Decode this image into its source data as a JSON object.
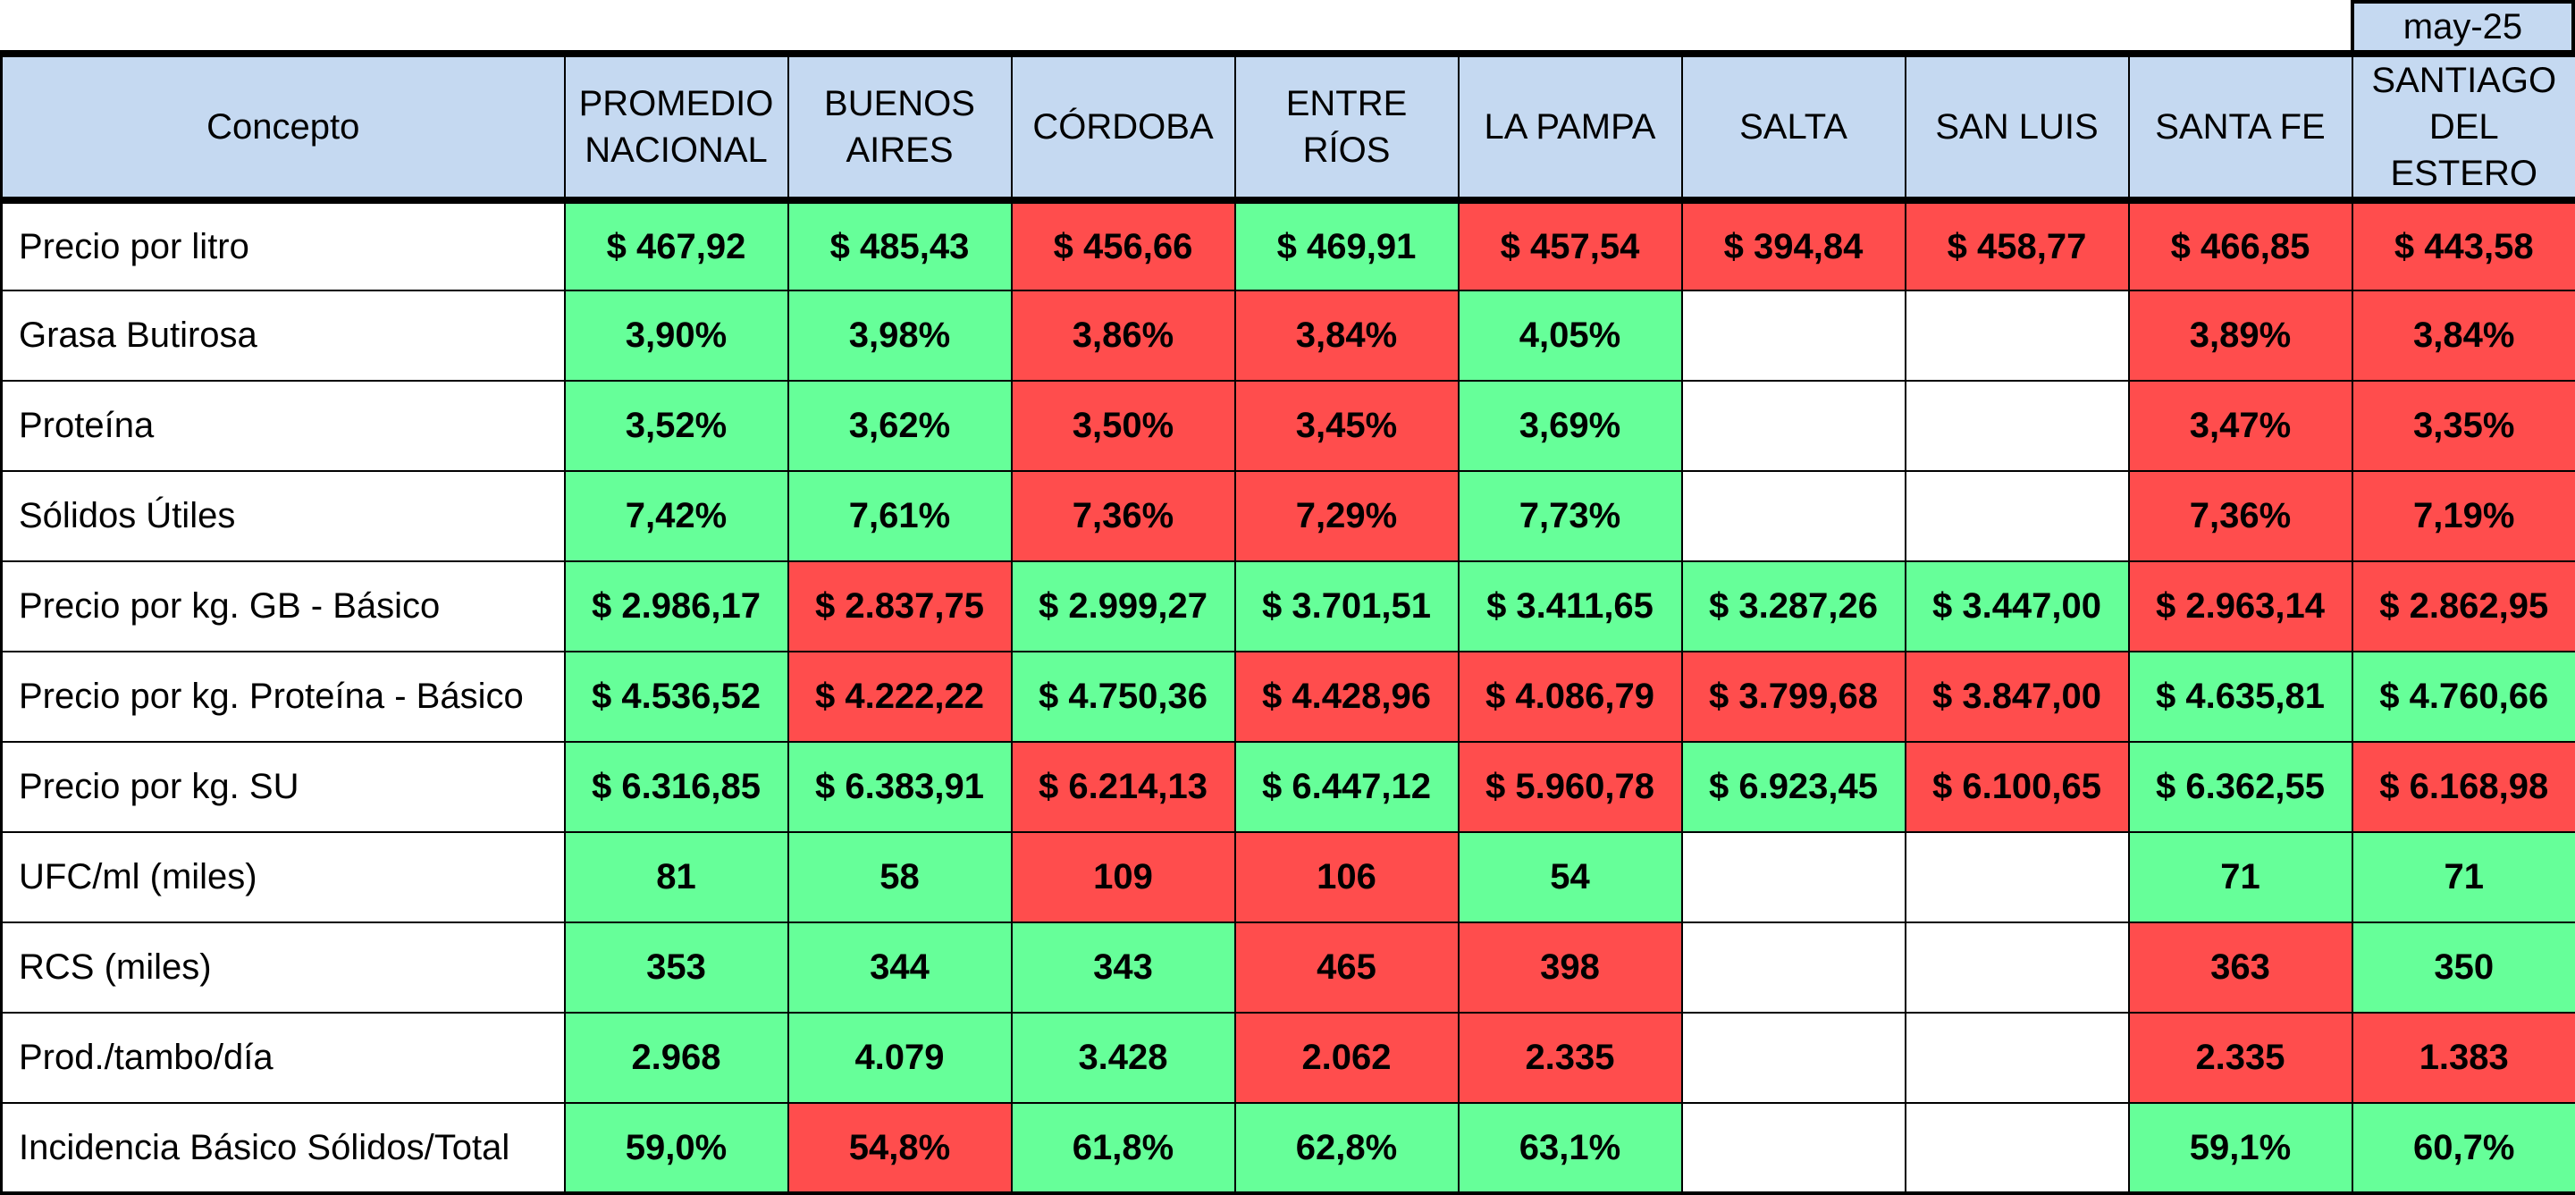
{
  "period": "may-25",
  "colors": {
    "header_bg": "#c5d9f1",
    "positive": "#66ff99",
    "negative": "#ff4d4d",
    "empty": "#ffffff"
  },
  "columns": [
    "Concepto",
    "PROMEDIO\nNACIONAL",
    "BUENOS\nAIRES",
    "CÓRDOBA",
    "ENTRE RÍOS",
    "LA PAMPA",
    "SALTA",
    "SAN LUIS",
    "SANTA FE",
    "SANTIAGO\nDEL ESTERO"
  ],
  "rows": [
    {
      "concept": "Precio por litro",
      "cells": [
        {
          "value": "$ 467,92",
          "status": "green"
        },
        {
          "value": "$ 485,43",
          "status": "green"
        },
        {
          "value": "$ 456,66",
          "status": "red"
        },
        {
          "value": "$ 469,91",
          "status": "green"
        },
        {
          "value": "$ 457,54",
          "status": "red"
        },
        {
          "value": "$ 394,84",
          "status": "red"
        },
        {
          "value": "$ 458,77",
          "status": "red"
        },
        {
          "value": "$ 466,85",
          "status": "red"
        },
        {
          "value": "$ 443,58",
          "status": "red"
        }
      ]
    },
    {
      "concept": "Grasa Butirosa",
      "cells": [
        {
          "value": "3,90%",
          "status": "green"
        },
        {
          "value": "3,98%",
          "status": "green"
        },
        {
          "value": "3,86%",
          "status": "red"
        },
        {
          "value": "3,84%",
          "status": "red"
        },
        {
          "value": "4,05%",
          "status": "green"
        },
        {
          "value": "",
          "status": "blank"
        },
        {
          "value": "",
          "status": "blank"
        },
        {
          "value": "3,89%",
          "status": "red"
        },
        {
          "value": "3,84%",
          "status": "red"
        }
      ]
    },
    {
      "concept": "Proteína",
      "cells": [
        {
          "value": "3,52%",
          "status": "green"
        },
        {
          "value": "3,62%",
          "status": "green"
        },
        {
          "value": "3,50%",
          "status": "red"
        },
        {
          "value": "3,45%",
          "status": "red"
        },
        {
          "value": "3,69%",
          "status": "green"
        },
        {
          "value": "",
          "status": "blank"
        },
        {
          "value": "",
          "status": "blank"
        },
        {
          "value": "3,47%",
          "status": "red"
        },
        {
          "value": "3,35%",
          "status": "red"
        }
      ]
    },
    {
      "concept": "Sólidos Útiles",
      "cells": [
        {
          "value": "7,42%",
          "status": "green"
        },
        {
          "value": "7,61%",
          "status": "green"
        },
        {
          "value": "7,36%",
          "status": "red"
        },
        {
          "value": "7,29%",
          "status": "red"
        },
        {
          "value": "7,73%",
          "status": "green"
        },
        {
          "value": "",
          "status": "blank"
        },
        {
          "value": "",
          "status": "blank"
        },
        {
          "value": "7,36%",
          "status": "red"
        },
        {
          "value": "7,19%",
          "status": "red"
        }
      ]
    },
    {
      "concept": "Precio por kg. GB - Básico",
      "cells": [
        {
          "value": "$ 2.986,17",
          "status": "green"
        },
        {
          "value": "$ 2.837,75",
          "status": "red"
        },
        {
          "value": "$ 2.999,27",
          "status": "green"
        },
        {
          "value": "$ 3.701,51",
          "status": "green"
        },
        {
          "value": "$ 3.411,65",
          "status": "green"
        },
        {
          "value": "$ 3.287,26",
          "status": "green"
        },
        {
          "value": "$ 3.447,00",
          "status": "green"
        },
        {
          "value": "$ 2.963,14",
          "status": "red"
        },
        {
          "value": "$ 2.862,95",
          "status": "red"
        }
      ]
    },
    {
      "concept": "Precio por kg. Proteína - Básico",
      "cells": [
        {
          "value": "$ 4.536,52",
          "status": "green"
        },
        {
          "value": "$ 4.222,22",
          "status": "red"
        },
        {
          "value": "$ 4.750,36",
          "status": "green"
        },
        {
          "value": "$ 4.428,96",
          "status": "red"
        },
        {
          "value": "$ 4.086,79",
          "status": "red"
        },
        {
          "value": "$ 3.799,68",
          "status": "red"
        },
        {
          "value": "$ 3.847,00",
          "status": "red"
        },
        {
          "value": "$ 4.635,81",
          "status": "green"
        },
        {
          "value": "$ 4.760,66",
          "status": "green"
        }
      ]
    },
    {
      "concept": "Precio por kg. SU",
      "cells": [
        {
          "value": "$ 6.316,85",
          "status": "green"
        },
        {
          "value": "$ 6.383,91",
          "status": "green"
        },
        {
          "value": "$ 6.214,13",
          "status": "red"
        },
        {
          "value": "$ 6.447,12",
          "status": "green"
        },
        {
          "value": "$ 5.960,78",
          "status": "red"
        },
        {
          "value": "$ 6.923,45",
          "status": "green"
        },
        {
          "value": "$ 6.100,65",
          "status": "red"
        },
        {
          "value": "$ 6.362,55",
          "status": "green"
        },
        {
          "value": "$ 6.168,98",
          "status": "red"
        }
      ]
    },
    {
      "concept": "UFC/ml (miles)",
      "cells": [
        {
          "value": "81",
          "status": "green"
        },
        {
          "value": "58",
          "status": "green"
        },
        {
          "value": "109",
          "status": "red"
        },
        {
          "value": "106",
          "status": "red"
        },
        {
          "value": "54",
          "status": "green"
        },
        {
          "value": "",
          "status": "blank"
        },
        {
          "value": "",
          "status": "blank"
        },
        {
          "value": "71",
          "status": "green"
        },
        {
          "value": "71",
          "status": "green"
        }
      ]
    },
    {
      "concept": "RCS (miles)",
      "cells": [
        {
          "value": "353",
          "status": "green"
        },
        {
          "value": "344",
          "status": "green"
        },
        {
          "value": "343",
          "status": "green"
        },
        {
          "value": "465",
          "status": "red"
        },
        {
          "value": "398",
          "status": "red"
        },
        {
          "value": "",
          "status": "blank"
        },
        {
          "value": "",
          "status": "blank"
        },
        {
          "value": "363",
          "status": "red"
        },
        {
          "value": "350",
          "status": "green"
        }
      ]
    },
    {
      "concept": "Prod./tambo/día",
      "cells": [
        {
          "value": "2.968",
          "status": "green"
        },
        {
          "value": "4.079",
          "status": "green"
        },
        {
          "value": "3.428",
          "status": "green"
        },
        {
          "value": "2.062",
          "status": "red"
        },
        {
          "value": "2.335",
          "status": "red"
        },
        {
          "value": "",
          "status": "blank"
        },
        {
          "value": "",
          "status": "blank"
        },
        {
          "value": "2.335",
          "status": "red"
        },
        {
          "value": "1.383",
          "status": "red"
        }
      ]
    },
    {
      "concept": "Incidencia Básico Sólidos/Total",
      "cells": [
        {
          "value": "59,0%",
          "status": "green"
        },
        {
          "value": "54,8%",
          "status": "red"
        },
        {
          "value": "61,8%",
          "status": "green"
        },
        {
          "value": "62,8%",
          "status": "green"
        },
        {
          "value": "63,1%",
          "status": "green"
        },
        {
          "value": "",
          "status": "blank"
        },
        {
          "value": "",
          "status": "blank"
        },
        {
          "value": "59,1%",
          "status": "green"
        },
        {
          "value": "60,7%",
          "status": "green"
        }
      ]
    }
  ]
}
